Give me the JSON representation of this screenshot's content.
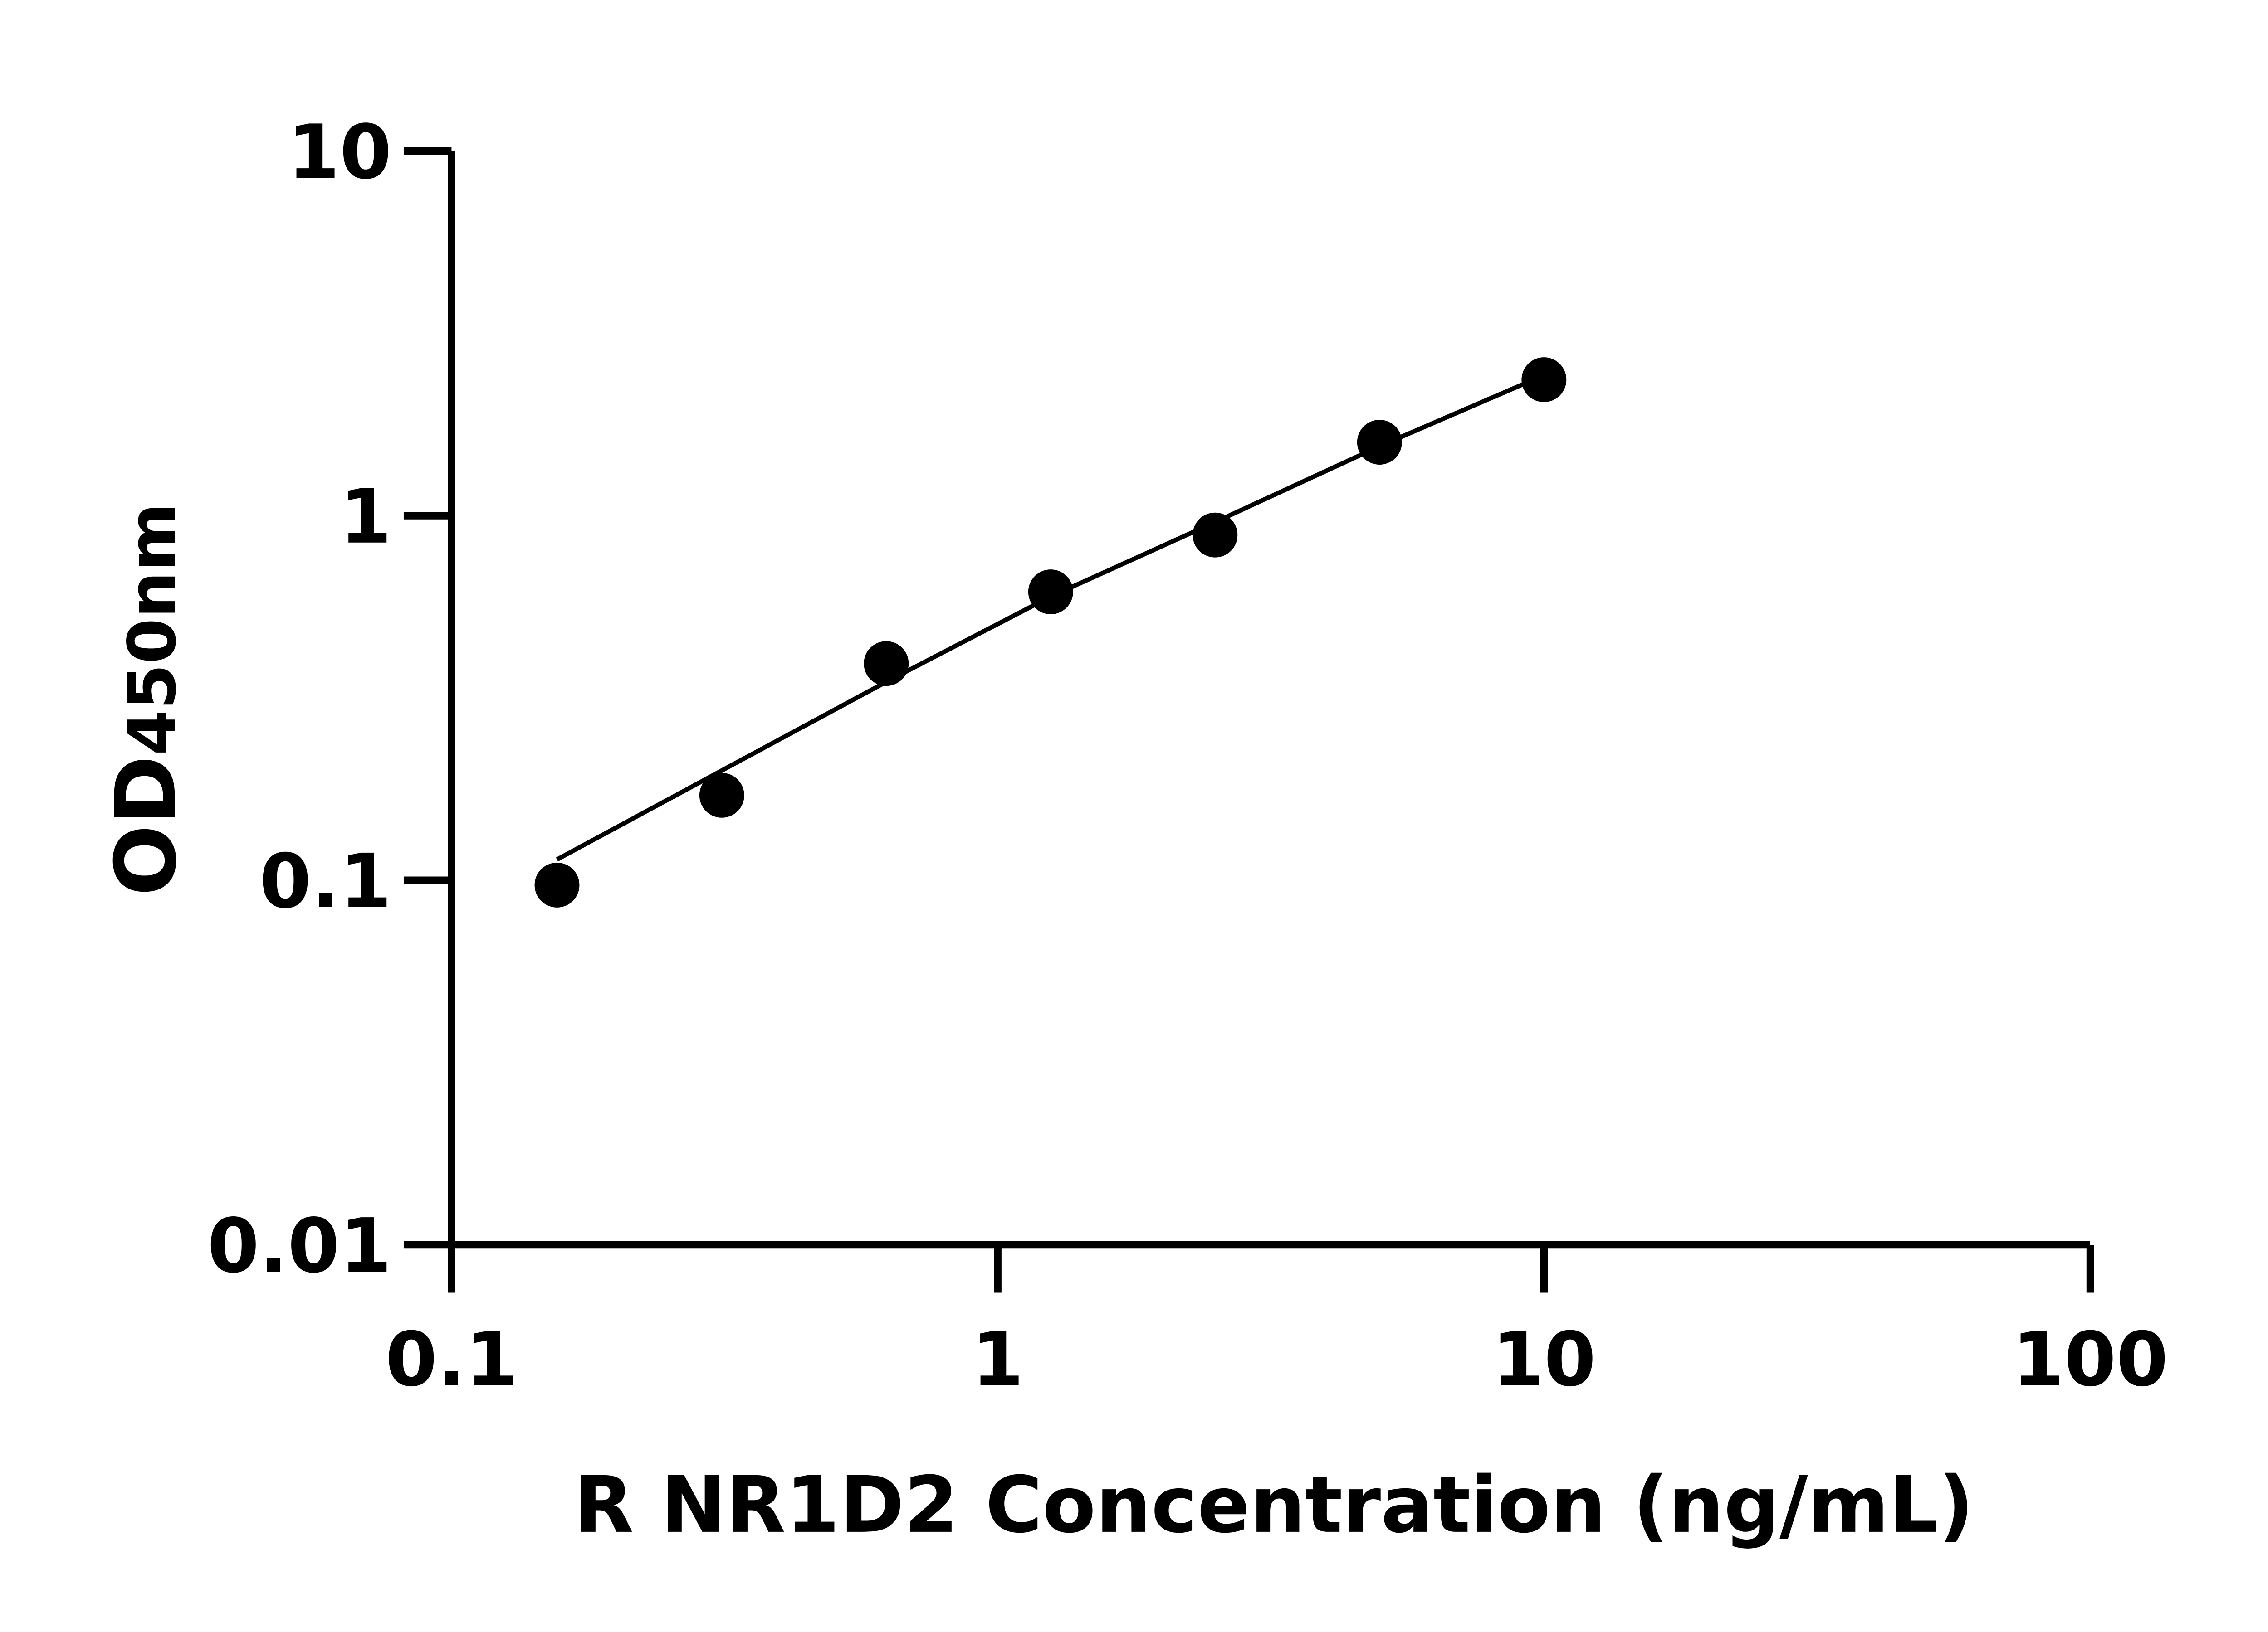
{
  "chart_data": {
    "type": "scatter",
    "title": "",
    "xlabel": "R NR1D2 Concentration (ng/mL)",
    "ylabel_main": "OD",
    "ylabel_sub": "450nm",
    "x_scale": "log",
    "y_scale": "log",
    "xlim": [
      0.1,
      100
    ],
    "ylim": [
      0.01,
      10
    ],
    "x_ticks": [
      "0.1",
      "1",
      "10",
      "100"
    ],
    "y_ticks": [
      "0.01",
      "0.1",
      "1",
      "10"
    ],
    "grid": false,
    "legend": "none",
    "points": {
      "x": [
        0.156,
        0.3125,
        0.625,
        1.25,
        2.5,
        5,
        10
      ],
      "y": [
        0.097,
        0.171,
        0.393,
        0.618,
        0.885,
        1.59,
        2.36
      ]
    },
    "fit_line": {
      "x": [
        0.156,
        0.3125,
        0.625,
        1.25,
        2.5,
        5,
        9.2
      ],
      "y": [
        0.114,
        0.2,
        0.35,
        0.6,
        0.96,
        1.55,
        2.3
      ]
    },
    "colors": {
      "points": "#000000",
      "line": "#000000",
      "axes": "#000000"
    }
  }
}
